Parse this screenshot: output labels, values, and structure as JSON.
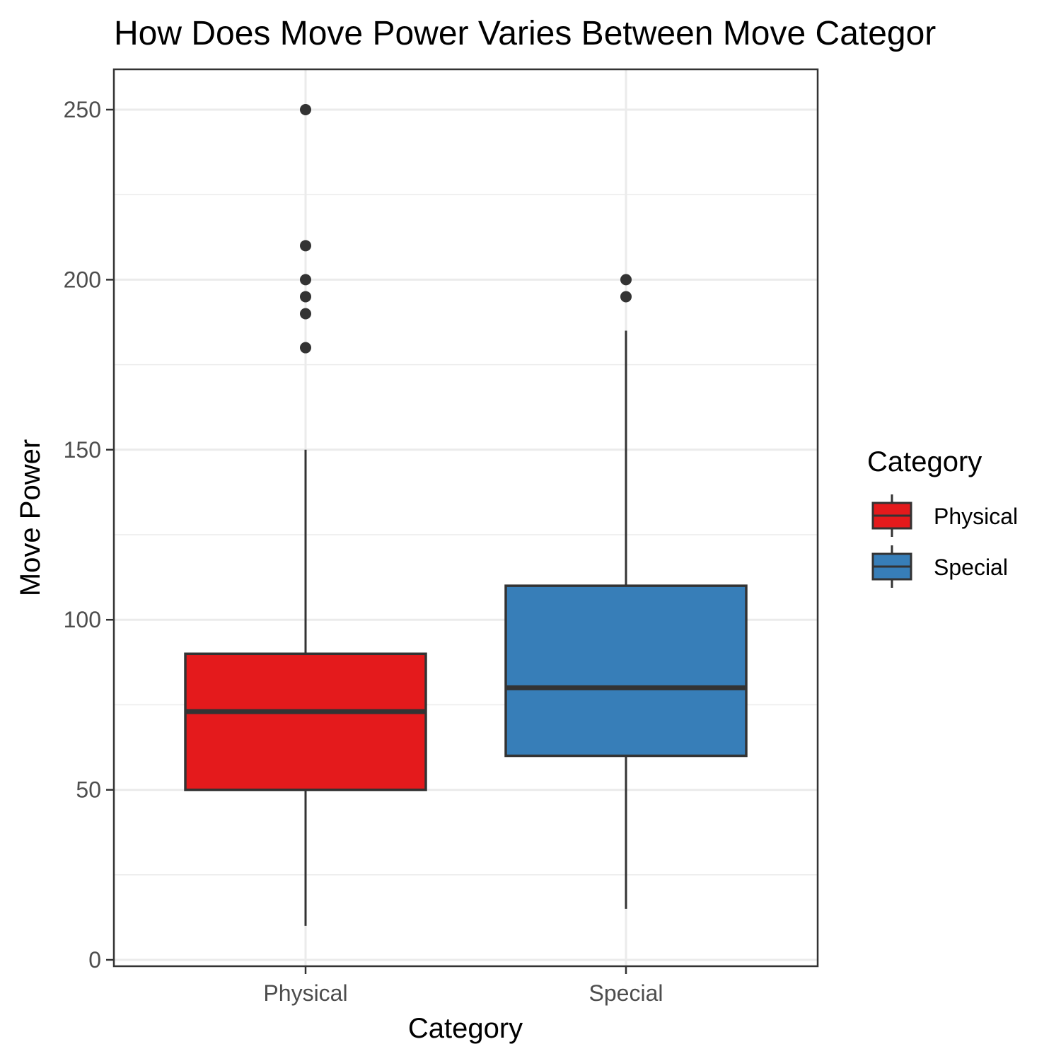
{
  "chart_data": {
    "type": "boxplot",
    "title": "How Does Move Power Varies Between Move Categor",
    "xlabel": "Category",
    "ylabel": "Move Power",
    "categories": [
      "Physical",
      "Special"
    ],
    "ylim": [
      0,
      260
    ],
    "y_ticks": [
      0,
      50,
      100,
      150,
      200,
      250
    ],
    "y_minor_ticks": [
      25,
      75,
      125,
      175,
      225
    ],
    "grid": true,
    "legend": {
      "title": "Category",
      "placement": "right",
      "entries": [
        "Physical",
        "Special"
      ]
    },
    "series": [
      {
        "name": "Physical",
        "color": "#e41a1c",
        "whisker_low": 10,
        "q1": 50,
        "median": 73,
        "q3": 90,
        "whisker_high": 150,
        "outliers": [
          180,
          190,
          195,
          200,
          210,
          250
        ]
      },
      {
        "name": "Special",
        "color": "#377eb8",
        "whisker_low": 15,
        "q1": 60,
        "median": 80,
        "q3": 110,
        "whisker_high": 185,
        "outliers": [
          195,
          200
        ]
      }
    ],
    "colors": {
      "outline": "#333333",
      "grid": "#ebebeb",
      "panel_border": "#333333"
    }
  }
}
